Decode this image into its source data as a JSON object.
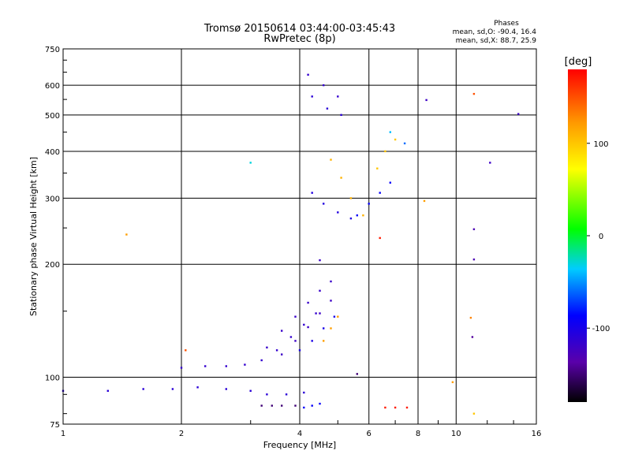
{
  "chart_data": {
    "type": "scatter",
    "title": "Tromsø 20150614 03:44:00-03:45:43",
    "subtitle": "RwPretec (8p)",
    "xlabel": "Frequency [MHz]",
    "ylabel": "Stationary phase Virtual Height [km]",
    "x_scale": "log",
    "y_scale": "log",
    "xlim": [
      1,
      16
    ],
    "ylim": [
      75,
      750
    ],
    "x_ticks": [
      "1",
      "2",
      "4",
      "6",
      "8",
      "10",
      "16"
    ],
    "x_tick_values": [
      1,
      2,
      4,
      6,
      8,
      10,
      16
    ],
    "y_ticks": [
      "75",
      "100",
      "200",
      "300",
      "400",
      "500",
      "600",
      "750"
    ],
    "y_tick_values": [
      75,
      100,
      200,
      300,
      400,
      500,
      600,
      750
    ],
    "grid": true,
    "phases": {
      "title": "Phases",
      "line_o": "mean, sd,O: -90.4, 16.4",
      "line_x": "mean, sd,X:  88.7, 25.9"
    },
    "colorbar": {
      "label": "[deg]",
      "range": [
        -180,
        180
      ],
      "ticks": [
        "100",
        "0",
        "-100"
      ],
      "tick_values": [
        100,
        0,
        -100
      ]
    },
    "traces": [
      {
        "x": [
          1.0,
          1.3,
          1.6,
          1.9,
          2.2,
          2.6,
          3.0,
          3.3,
          3.7,
          4.1
        ],
        "y": [
          92,
          92,
          93,
          93,
          94,
          93,
          92,
          90,
          90,
          91
        ],
        "phase": -110
      },
      {
        "x": [
          2.0,
          2.3,
          2.6,
          2.9,
          3.2,
          3.5,
          3.8,
          4.1,
          4.4
        ],
        "y": [
          106,
          107,
          107,
          108,
          111,
          118,
          128,
          138,
          148
        ],
        "phase": -115
      },
      {
        "x": [
          3.3,
          3.6,
          3.9,
          4.2,
          4.5,
          4.8
        ],
        "y": [
          120,
          133,
          145,
          158,
          170,
          180
        ],
        "phase": -118
      },
      {
        "x": [
          3.6,
          3.9,
          4.2,
          4.5,
          4.8
        ],
        "y": [
          115,
          125,
          136,
          148,
          160
        ],
        "phase": -120
      },
      {
        "x": [
          4.0,
          4.3,
          4.6,
          4.9
        ],
        "y": [
          118,
          125,
          135,
          145
        ],
        "phase": -100
      },
      {
        "x": [
          4.6,
          4.8,
          5.0
        ],
        "y": [
          125,
          135,
          145
        ],
        "phase": 120
      },
      {
        "x": [
          4.2,
          4.6,
          5.0
        ],
        "y": [
          640,
          600,
          560
        ],
        "phase": -115
      },
      {
        "x": [
          4.3,
          4.7,
          5.1
        ],
        "y": [
          560,
          520,
          500
        ],
        "phase": -110
      },
      {
        "x": [
          4.3,
          4.6,
          5.0,
          5.4
        ],
        "y": [
          310,
          290,
          275,
          265
        ],
        "phase": -105
      },
      {
        "x": [
          4.8,
          5.1,
          5.4,
          5.8
        ],
        "y": [
          380,
          340,
          300,
          270
        ],
        "phase": 110
      },
      {
        "x": [
          5.6,
          6.0,
          6.4,
          6.8
        ],
        "y": [
          270,
          290,
          310,
          330
        ],
        "phase": -90
      },
      {
        "x": [
          6.3,
          6.6,
          7.0
        ],
        "y": [
          360,
          400,
          430
        ],
        "phase": 100
      },
      {
        "x": [
          3.2,
          3.4,
          3.6,
          3.9
        ],
        "y": [
          84,
          84,
          84,
          84
        ],
        "phase": -150
      },
      {
        "x": [
          4.1,
          4.3,
          4.5
        ],
        "y": [
          83,
          84,
          85
        ],
        "phase": -90
      },
      {
        "x": [
          6.6,
          7.0,
          7.5
        ],
        "y": [
          83,
          83,
          83
        ],
        "phase": 170
      }
    ],
    "isolated_points": [
      {
        "x": 1.45,
        "y": 240,
        "phase": 120
      },
      {
        "x": 2.05,
        "y": 118,
        "phase": 150
      },
      {
        "x": 3.0,
        "y": 373,
        "phase": -30
      },
      {
        "x": 4.5,
        "y": 205,
        "phase": -120
      },
      {
        "x": 6.4,
        "y": 235,
        "phase": 170
      },
      {
        "x": 8.4,
        "y": 548,
        "phase": -120
      },
      {
        "x": 8.3,
        "y": 295,
        "phase": 120
      },
      {
        "x": 9.8,
        "y": 97,
        "phase": 120
      },
      {
        "x": 11.1,
        "y": 569,
        "phase": 150
      },
      {
        "x": 11.1,
        "y": 248,
        "phase": -130
      },
      {
        "x": 11.1,
        "y": 206,
        "phase": -130
      },
      {
        "x": 11.1,
        "y": 80,
        "phase": 100
      },
      {
        "x": 10.9,
        "y": 144,
        "phase": 130
      },
      {
        "x": 11.0,
        "y": 128,
        "phase": -140
      },
      {
        "x": 12.2,
        "y": 373,
        "phase": -120
      },
      {
        "x": 14.4,
        "y": 503,
        "phase": -120
      },
      {
        "x": 6.8,
        "y": 450,
        "phase": -40
      },
      {
        "x": 7.4,
        "y": 420,
        "phase": -60
      },
      {
        "x": 5.6,
        "y": 102,
        "phase": -150
      }
    ]
  }
}
